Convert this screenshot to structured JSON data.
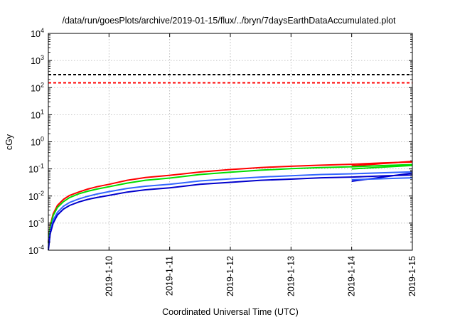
{
  "chart_data": {
    "type": "line",
    "title": "/data/run/goesPlots/archive/2019-01-15/flux/../bryn/7daysEarthDataAccumulated.plot",
    "xlabel": "Coordinated Universal Time (UTC)",
    "ylabel": "cGy",
    "yscale": "log",
    "ylim": [
      0.0001,
      10000
    ],
    "xlim": [
      0,
      6
    ],
    "grid": true,
    "legend": "none",
    "x_ticks": [
      {
        "x": 1,
        "label": "2019-1-10"
      },
      {
        "x": 2,
        "label": "2019-1-11"
      },
      {
        "x": 3,
        "label": "2019-1-12"
      },
      {
        "x": 4,
        "label": "2019-1-13"
      },
      {
        "x": 5,
        "label": "2019-1-14"
      },
      {
        "x": 6,
        "label": "2019-1-15"
      }
    ],
    "y_ticks": [
      {
        "v": 0.0001,
        "base": "10",
        "exp": "-4"
      },
      {
        "v": 0.001,
        "base": "10",
        "exp": "-3"
      },
      {
        "v": 0.01,
        "base": "10",
        "exp": "-2"
      },
      {
        "v": 0.1,
        "base": "10",
        "exp": "-1"
      },
      {
        "v": 1,
        "base": "10",
        "exp": "0"
      },
      {
        "v": 10,
        "base": "10",
        "exp": "1"
      },
      {
        "v": 100,
        "base": "10",
        "exp": "2"
      },
      {
        "v": 1000,
        "base": "10",
        "exp": "3"
      },
      {
        "v": 10000,
        "base": "10",
        "exp": "4"
      }
    ],
    "hlines": [
      {
        "y": 300,
        "color": "#000000"
      },
      {
        "y": 150,
        "color": "#ff0000"
      }
    ],
    "series": [
      {
        "color": "#ff0000",
        "x": [
          0,
          0.03,
          0.08,
          0.15,
          0.25,
          0.35,
          0.5,
          0.65,
          0.8,
          1.0,
          1.3,
          1.6,
          2.0,
          2.5,
          3.0,
          3.5,
          4.0,
          4.5,
          5.0,
          5.5,
          6.0
        ],
        "y": [
          0.0002,
          0.0008,
          0.0022,
          0.0045,
          0.0075,
          0.0105,
          0.014,
          0.018,
          0.022,
          0.027,
          0.038,
          0.048,
          0.058,
          0.077,
          0.095,
          0.112,
          0.125,
          0.137,
          0.148,
          0.165,
          0.18
        ]
      },
      {
        "color": "#ff0000",
        "x": [
          5.0,
          6.0
        ],
        "y": [
          0.13,
          0.19
        ]
      },
      {
        "color": "#00dd00",
        "x": [
          0,
          0.03,
          0.08,
          0.15,
          0.25,
          0.35,
          0.5,
          0.65,
          0.8,
          1.0,
          1.3,
          1.6,
          2.0,
          2.5,
          3.0,
          3.5,
          4.0,
          4.5,
          5.0,
          5.5,
          6.0
        ],
        "y": [
          0.00018,
          0.0007,
          0.0019,
          0.0038,
          0.0062,
          0.0088,
          0.012,
          0.015,
          0.018,
          0.022,
          0.03,
          0.038,
          0.046,
          0.062,
          0.076,
          0.09,
          0.102,
          0.112,
          0.12,
          0.132,
          0.145
        ]
      },
      {
        "color": "#00dd00",
        "x": [
          5.0,
          6.0
        ],
        "y": [
          0.1,
          0.135
        ]
      },
      {
        "color": "#3366ff",
        "x": [
          0,
          0.03,
          0.08,
          0.15,
          0.25,
          0.35,
          0.5,
          0.65,
          0.8,
          1.0,
          1.3,
          1.6,
          2.0,
          2.5,
          3.0,
          3.5,
          4.0,
          4.5,
          5.0,
          5.5,
          6.0
        ],
        "y": [
          0.00012,
          0.0005,
          0.0013,
          0.0025,
          0.0042,
          0.0058,
          0.0078,
          0.0098,
          0.0118,
          0.0145,
          0.019,
          0.023,
          0.027,
          0.036,
          0.043,
          0.05,
          0.056,
          0.062,
          0.066,
          0.072,
          0.078
        ]
      },
      {
        "color": "#0000cc",
        "x": [
          0,
          0.03,
          0.08,
          0.15,
          0.25,
          0.35,
          0.5,
          0.65,
          0.8,
          1.0,
          1.3,
          1.6,
          2.0,
          2.5,
          3.0,
          3.5,
          4.0,
          4.5,
          5.0,
          5.5,
          6.0
        ],
        "y": [
          0.0001,
          0.0004,
          0.001,
          0.002,
          0.0033,
          0.0045,
          0.006,
          0.0075,
          0.0088,
          0.0105,
          0.014,
          0.017,
          0.02,
          0.027,
          0.032,
          0.038,
          0.042,
          0.047,
          0.05,
          0.055,
          0.06
        ]
      },
      {
        "color": "#0000cc",
        "x": [
          5.0,
          6.0
        ],
        "y": [
          0.035,
          0.07
        ]
      },
      {
        "color": "#3366ff",
        "x": [
          5.0,
          6.0
        ],
        "y": [
          0.04,
          0.047
        ]
      }
    ]
  }
}
